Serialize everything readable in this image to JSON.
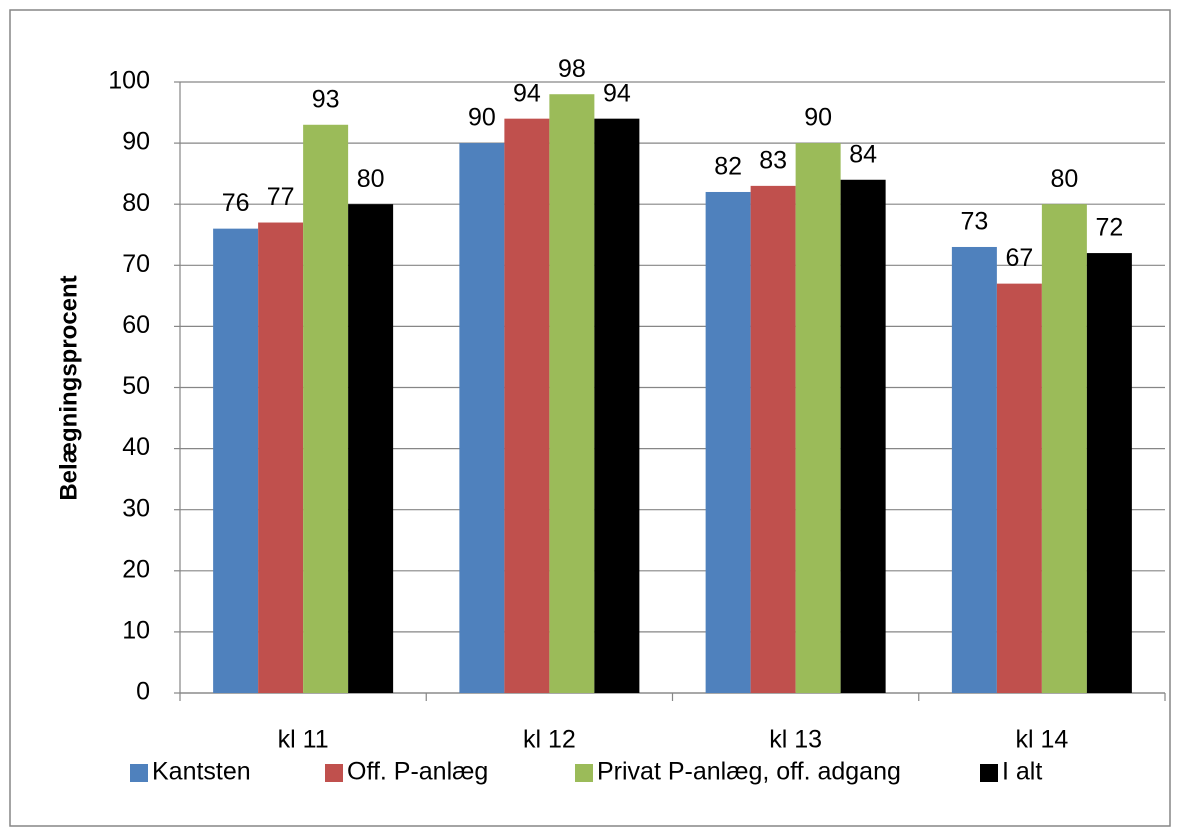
{
  "chart_data": {
    "type": "bar",
    "y_label": "Belægningsprocent",
    "categories": [
      "kl 11",
      "kl 12",
      "kl 13",
      "kl 14"
    ],
    "series": [
      {
        "name": "Kantsten",
        "color": "#4f81bd",
        "values": [
          76,
          90,
          82,
          73
        ]
      },
      {
        "name": "Off. P-anlæg",
        "color": "#c0504d",
        "values": [
          77,
          94,
          83,
          67
        ]
      },
      {
        "name": "Privat P-anlæg, off. adgang",
        "color": "#9bbb59",
        "values": [
          93,
          98,
          90,
          80
        ]
      },
      {
        "name": "I alt",
        "color": "#000000",
        "values": [
          80,
          94,
          84,
          72
        ]
      }
    ],
    "ylim": [
      0,
      100
    ],
    "yticks": [
      0,
      10,
      20,
      30,
      40,
      50,
      60,
      70,
      80,
      90,
      100
    ],
    "grid": true,
    "legend": "bottom"
  }
}
